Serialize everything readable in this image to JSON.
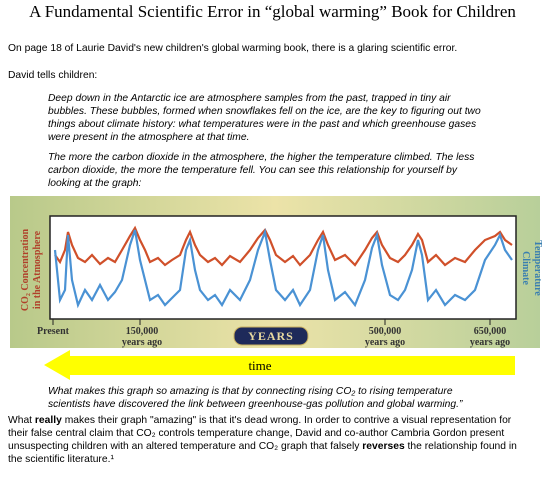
{
  "header": {
    "title": "A Fundamental Scientific Error in “global warming” Book for Children"
  },
  "intro": "On page 18 of Laurie David's new children's global warming book, there is a glaring scientific error.",
  "lead": "David tells children:",
  "quote": {
    "paragraph1": [
      "Deep down in the Antarctic ice are atmosphere samples from the past, trapped in tiny air",
      "bubbles.  These bubbles, formed when snowflakes fell on the ice, are the key to figuring out two",
      "things about climate history: what temperatures were in the past and which greenhouse gases",
      "were present in the atmosphere at that time."
    ],
    "paragraph2": [
      "The more the carbon dioxide in the atmosphere, the higher the temperature climbed.  The less",
      "carbon dioxide, the more the temperature fell.  You can see this relationship for yourself by",
      "looking at the graph:"
    ],
    "paragraph3": [
      "What makes this graph so amazing is that by connecting rising CO₂ to rising temperature",
      "scientists have discovered the link between greenhouse-gas pollution and global warming.”"
    ]
  },
  "figure": {
    "left_label": [
      "CO₂ Concentration",
      "in the Atmosphere"
    ],
    "right_label": [
      "Climate",
      "Temperature"
    ],
    "x_labels": [
      [
        "Present"
      ],
      [
        "150,000",
        "years ago"
      ],
      [
        "500,000",
        "years ago"
      ],
      [
        "650,000",
        "years ago"
      ]
    ],
    "axis_title": "YEARS",
    "arrow_label": "time"
  },
  "closing": [
    [
      "What ",
      "really",
      " makes their graph \"amazing\" is that it's dead wrong.  In order to contrive a visual representation for"
    ],
    [
      "their false central claim that CO₂ controls temperature change, David and co-author Cambria Gordon present"
    ],
    [
      "unsuspecting children with an altered temperature and CO₂ graph that falsely ",
      "reverses",
      " the relationship found in"
    ],
    [
      "the scientific literature.",
      "¹"
    ]
  ]
}
